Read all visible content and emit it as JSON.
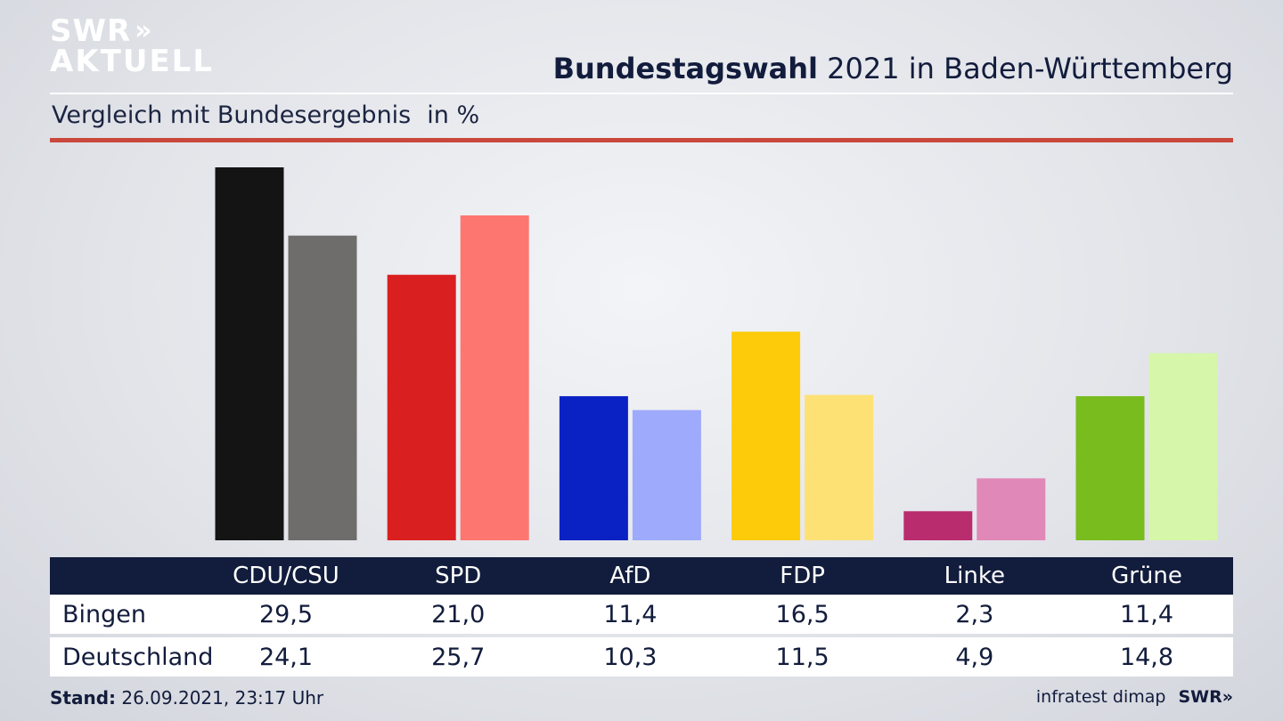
{
  "branding": {
    "logo_line1": "SWR",
    "logo_arrows": "»",
    "logo_line2": "AKTUELL",
    "footer_source": "infratest dimap",
    "footer_logo": "SWR»"
  },
  "header": {
    "title_bold": "Bundestagswahl",
    "title_rest": " 2021 in Baden-Württemberg",
    "subtitle": "Vergleich mit Bundesergebnis",
    "unit": "in %"
  },
  "footer": {
    "stand_label": "Stand:",
    "stand_value": " 26.09.2021, 23:17 Uhr"
  },
  "colors": {
    "primary": [
      "#141414",
      "#d91f1f",
      "#0a22c4",
      "#fdcb0a",
      "#b92c6e",
      "#78bc1e"
    ],
    "secondary": [
      "#6f6d6b",
      "#fe7670",
      "#9eaafc",
      "#fee175",
      "#e088b8",
      "#d6f6a9"
    ],
    "accent_rule": "#c9483b",
    "table_header": "#121c3c"
  },
  "chart_data": {
    "type": "bar",
    "categories": [
      "CDU/CSU",
      "SPD",
      "AfD",
      "FDP",
      "Linke",
      "Grüne"
    ],
    "series": [
      {
        "name": "Bingen",
        "values": [
          29.5,
          21.0,
          11.4,
          16.5,
          2.3,
          11.4
        ],
        "labels": [
          "29,5",
          "21,0",
          "11,4",
          "16,5",
          "2,3",
          "11,4"
        ]
      },
      {
        "name": "Deutschland",
        "values": [
          24.1,
          25.7,
          10.3,
          11.5,
          4.9,
          14.8
        ],
        "labels": [
          "24,1",
          "25,7",
          "10,3",
          "11,5",
          "4,9",
          "14,8"
        ]
      }
    ],
    "ylim": [
      0,
      29.5
    ],
    "grid": false,
    "legend": "table-below"
  }
}
